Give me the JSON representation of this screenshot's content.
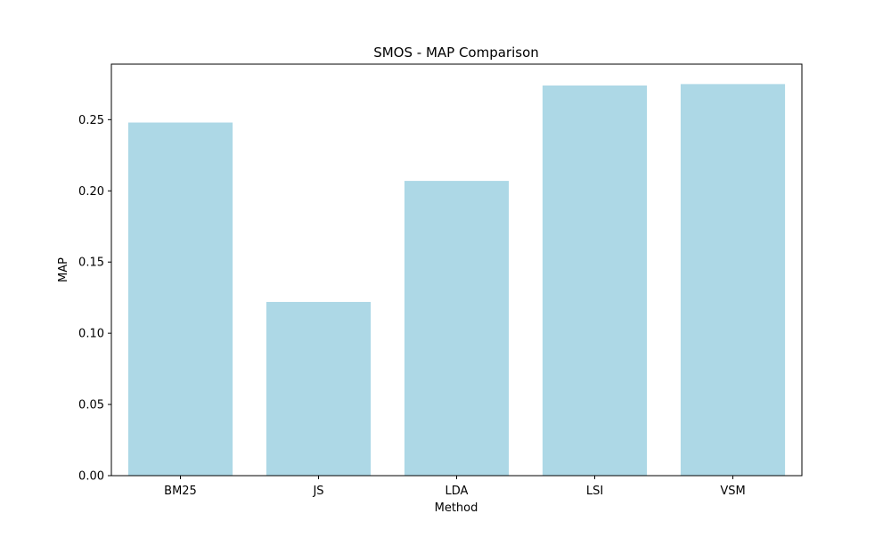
{
  "chart_data": {
    "type": "bar",
    "title": "SMOS - MAP Comparison",
    "xlabel": "Method",
    "ylabel": "MAP",
    "categories": [
      "BM25",
      "JS",
      "LDA",
      "LSI",
      "VSM"
    ],
    "values": [
      0.248,
      0.122,
      0.207,
      0.274,
      0.275
    ],
    "ylim": [
      0,
      0.289
    ],
    "yticks": [
      0.0,
      0.05,
      0.1,
      0.15,
      0.2,
      0.25
    ],
    "ytick_labels": [
      "0.00",
      "0.05",
      "0.10",
      "0.15",
      "0.20",
      "0.25"
    ],
    "bar_color": "#add8e6",
    "grid": false,
    "legend": "none"
  }
}
